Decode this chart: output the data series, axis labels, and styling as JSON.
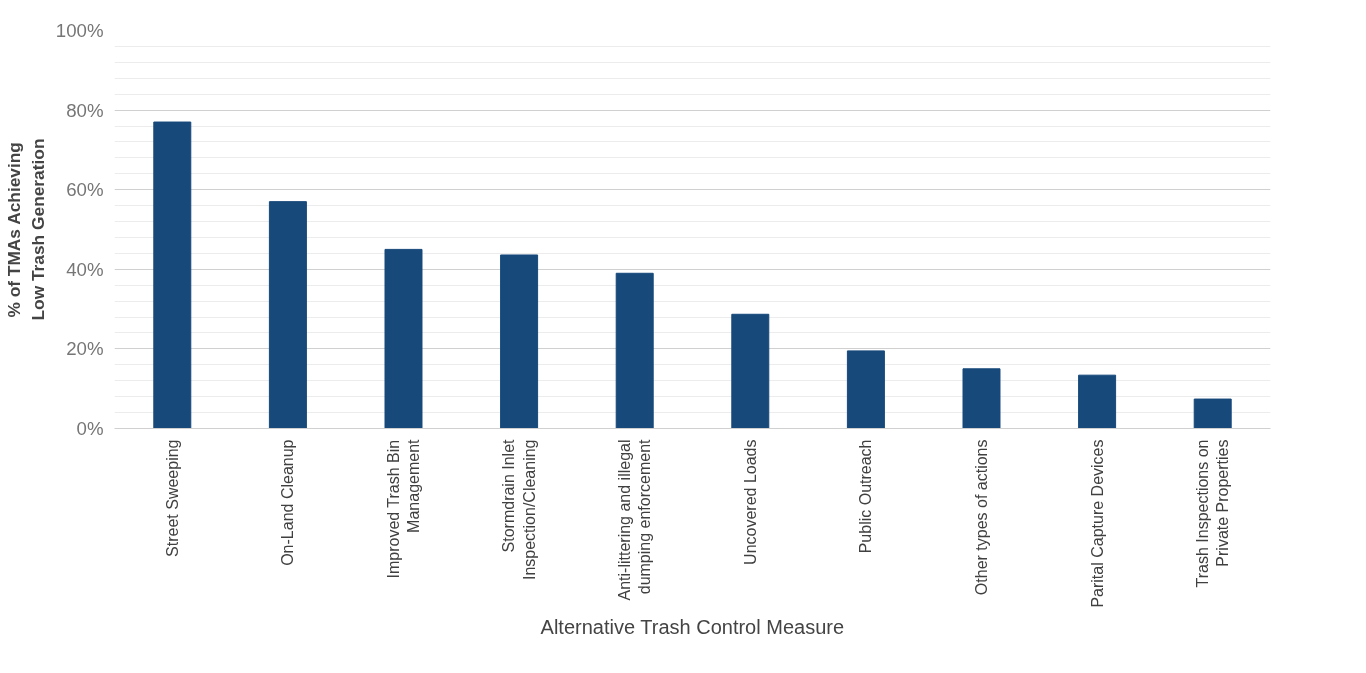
{
  "chart_data": {
    "type": "bar",
    "xlabel": "Alternative Trash Control Measure",
    "ylabel": "% of TMAs Achieving Low Trash Generation",
    "categories": [
      "Street Sweeping",
      "On-Land Cleanup",
      "Improved Trash Bin Management",
      "Stormdrain Inlet Inspection/Cleaning",
      "Anti-littering and illegal dumping enforcement",
      "Uncovered Loads",
      "Public Outreach",
      "Other types of actions",
      "Parital Capture Devices",
      "Trash Inspections on Private Properties"
    ],
    "values": [
      77,
      57,
      45,
      43.6,
      39,
      28.7,
      19.5,
      15,
      13.4,
      7.4
    ],
    "color": "#17497b",
    "ylim": [
      0,
      100
    ],
    "yticks": [
      {
        "value": 0,
        "label": "0%"
      },
      {
        "value": 4,
        "label": null
      },
      {
        "value": 8,
        "label": null
      },
      {
        "value": 12,
        "label": null
      },
      {
        "value": 16,
        "label": null
      },
      {
        "value": 20,
        "label": "20%"
      },
      {
        "value": 24,
        "label": null
      },
      {
        "value": 28,
        "label": null
      },
      {
        "value": 32,
        "label": null
      },
      {
        "value": 36,
        "label": null
      },
      {
        "value": 40,
        "label": "40%"
      },
      {
        "value": 44,
        "label": null
      },
      {
        "value": 48,
        "label": null
      },
      {
        "value": 52,
        "label": null
      },
      {
        "value": 56,
        "label": null
      },
      {
        "value": 60,
        "label": "60%"
      },
      {
        "value": 64,
        "label": null
      },
      {
        "value": 68,
        "label": null
      },
      {
        "value": 72,
        "label": null
      },
      {
        "value": 76,
        "label": null
      },
      {
        "value": 80,
        "label": "80%"
      },
      {
        "value": 84,
        "label": null
      },
      {
        "value": 88,
        "label": null
      },
      {
        "value": 92,
        "label": null
      },
      {
        "value": 96,
        "label": null
      },
      {
        "value": 100,
        "label": "100%"
      }
    ],
    "grid": "y"
  }
}
